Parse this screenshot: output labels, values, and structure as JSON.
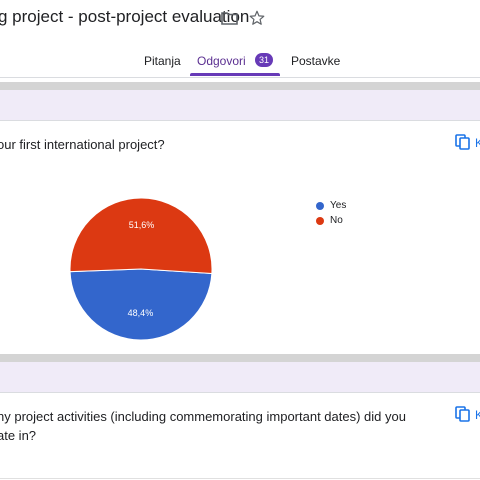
{
  "header": {
    "title": "g project - post-project evaluation",
    "tabs": [
      {
        "label": "Pitanja"
      },
      {
        "label": "Odgovori",
        "badge": "31",
        "active": true
      },
      {
        "label": "Postavke"
      }
    ]
  },
  "questions": [
    {
      "text": "our first international project?",
      "sub": ".",
      "copy_label": "K",
      "chart_data": {
        "type": "pie",
        "title": "",
        "legend_position": "right",
        "slices": [
          {
            "label": "Yes",
            "value": 48.4,
            "display": "48,4%",
            "color": "#3366cc"
          },
          {
            "label": "No",
            "value": 51.6,
            "display": "51,6%",
            "color": "#dc3912"
          }
        ]
      }
    },
    {
      "text_line1": "ny project activities (including commemorating important dates) did you",
      "text_line2": "ate in?",
      "sub": ".",
      "copy_label": "K"
    }
  ],
  "colors": {
    "accent": "#673ab7",
    "link": "#1a73e8",
    "yes": "#3366cc",
    "no": "#dc3912"
  }
}
